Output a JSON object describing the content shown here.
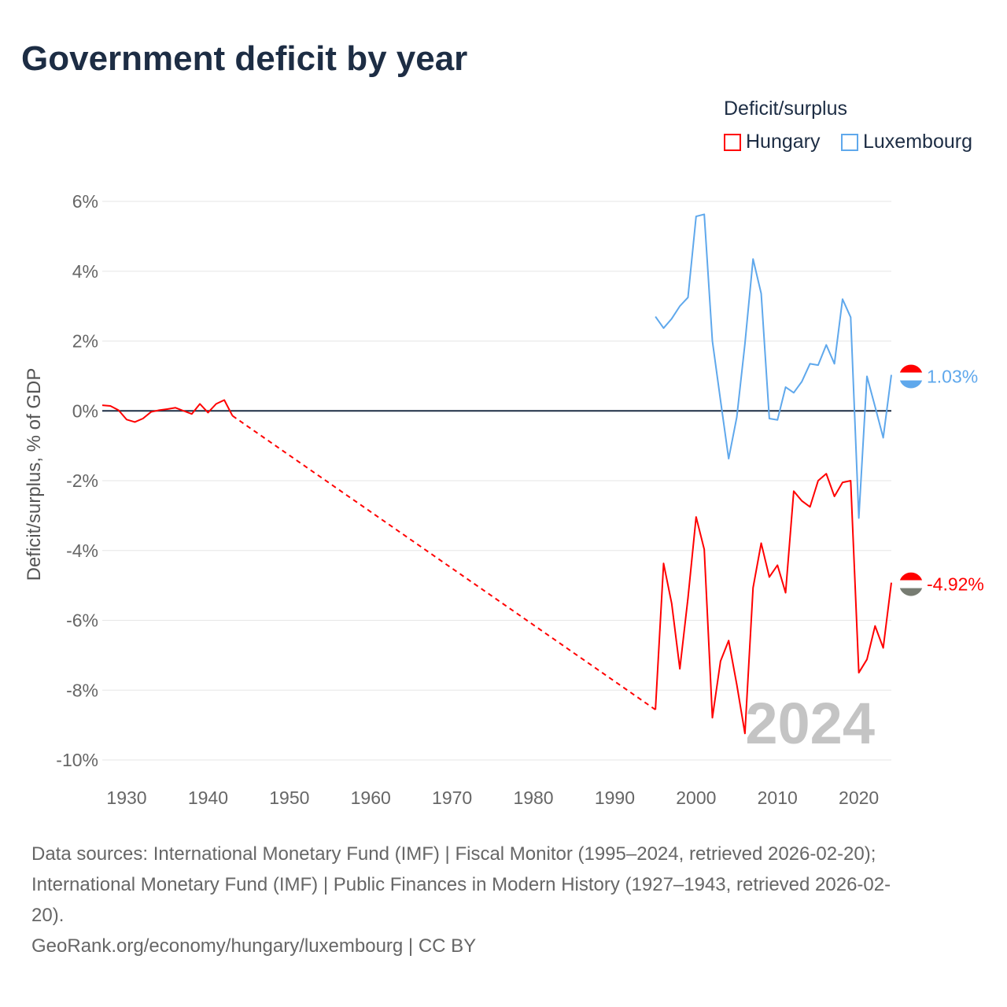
{
  "chart_data": {
    "type": "line",
    "title": "Government deficit by year",
    "ylabel": "Deficit/surplus, % of GDP",
    "xlabel": "",
    "xlim": [
      1927,
      2024
    ],
    "ylim": [
      -10,
      6
    ],
    "x_ticks": [
      1930,
      1940,
      1950,
      1960,
      1970,
      1980,
      1990,
      2000,
      2010,
      2020
    ],
    "y_ticks": [
      6,
      4,
      2,
      0,
      -2,
      -4,
      -6,
      -8,
      -10
    ],
    "y_tick_labels": [
      "6%",
      "4%",
      "2%",
      "0%",
      "-2%",
      "-4%",
      "-6%",
      "-8%",
      "-10%"
    ],
    "grid": true,
    "legend_title": "Deficit/surplus",
    "legend_position": "top-right",
    "watermark": "2024",
    "series": [
      {
        "name": "Hungary",
        "color": "#ff0000",
        "end_label": "-4.92%",
        "gap": [
          1943,
          1995
        ],
        "x": [
          1927,
          1928,
          1929,
          1930,
          1931,
          1932,
          1933,
          1934,
          1935,
          1936,
          1937,
          1938,
          1939,
          1940,
          1941,
          1942,
          1943,
          1995,
          1996,
          1997,
          1998,
          1999,
          2000,
          2001,
          2002,
          2003,
          2004,
          2005,
          2006,
          2007,
          2008,
          2009,
          2010,
          2011,
          2012,
          2013,
          2014,
          2015,
          2016,
          2017,
          2018,
          2019,
          2020,
          2021,
          2022,
          2023,
          2024
        ],
        "y": [
          0.16,
          0.14,
          0.02,
          -0.25,
          -0.32,
          -0.22,
          -0.03,
          0.02,
          0.05,
          0.09,
          0.0,
          -0.09,
          0.2,
          -0.05,
          0.2,
          0.31,
          -0.14,
          -8.56,
          -4.37,
          -5.52,
          -7.39,
          -5.36,
          -3.04,
          -3.97,
          -8.79,
          -7.17,
          -6.58,
          -7.84,
          -9.24,
          -5.07,
          -3.79,
          -4.76,
          -4.42,
          -5.21,
          -2.3,
          -2.58,
          -2.75,
          -2.0,
          -1.8,
          -2.45,
          -2.05,
          -2.0,
          -7.5,
          -7.12,
          -6.16,
          -6.79,
          -4.92
        ]
      },
      {
        "name": "Luxembourg",
        "color": "#5fa8ec",
        "end_label": "1.03%",
        "x": [
          1995,
          1996,
          1997,
          1998,
          1999,
          2000,
          2001,
          2002,
          2003,
          2004,
          2005,
          2006,
          2007,
          2008,
          2009,
          2010,
          2011,
          2012,
          2013,
          2014,
          2015,
          2016,
          2017,
          2018,
          2019,
          2020,
          2021,
          2022,
          2023,
          2024
        ],
        "y": [
          2.7,
          2.37,
          2.64,
          3.0,
          3.25,
          5.57,
          5.63,
          2.0,
          0.3,
          -1.37,
          -0.18,
          1.92,
          4.35,
          3.36,
          -0.22,
          -0.26,
          0.68,
          0.52,
          0.84,
          1.35,
          1.31,
          1.89,
          1.35,
          3.2,
          2.68,
          -3.07,
          0.99,
          0.12,
          -0.77,
          1.03
        ]
      }
    ]
  },
  "footer": {
    "line1": "Data sources: International Monetary Fund (IMF) | Fiscal Monitor (1995–2024, retrieved 2026-02-20);",
    "line2": "International Monetary Fund (IMF) | Public Finances in Modern History (1927–1943, retrieved 2026-02-",
    "line3": "20).",
    "line4": "GeoRank.org/economy/hungary/luxembourg | CC BY"
  }
}
